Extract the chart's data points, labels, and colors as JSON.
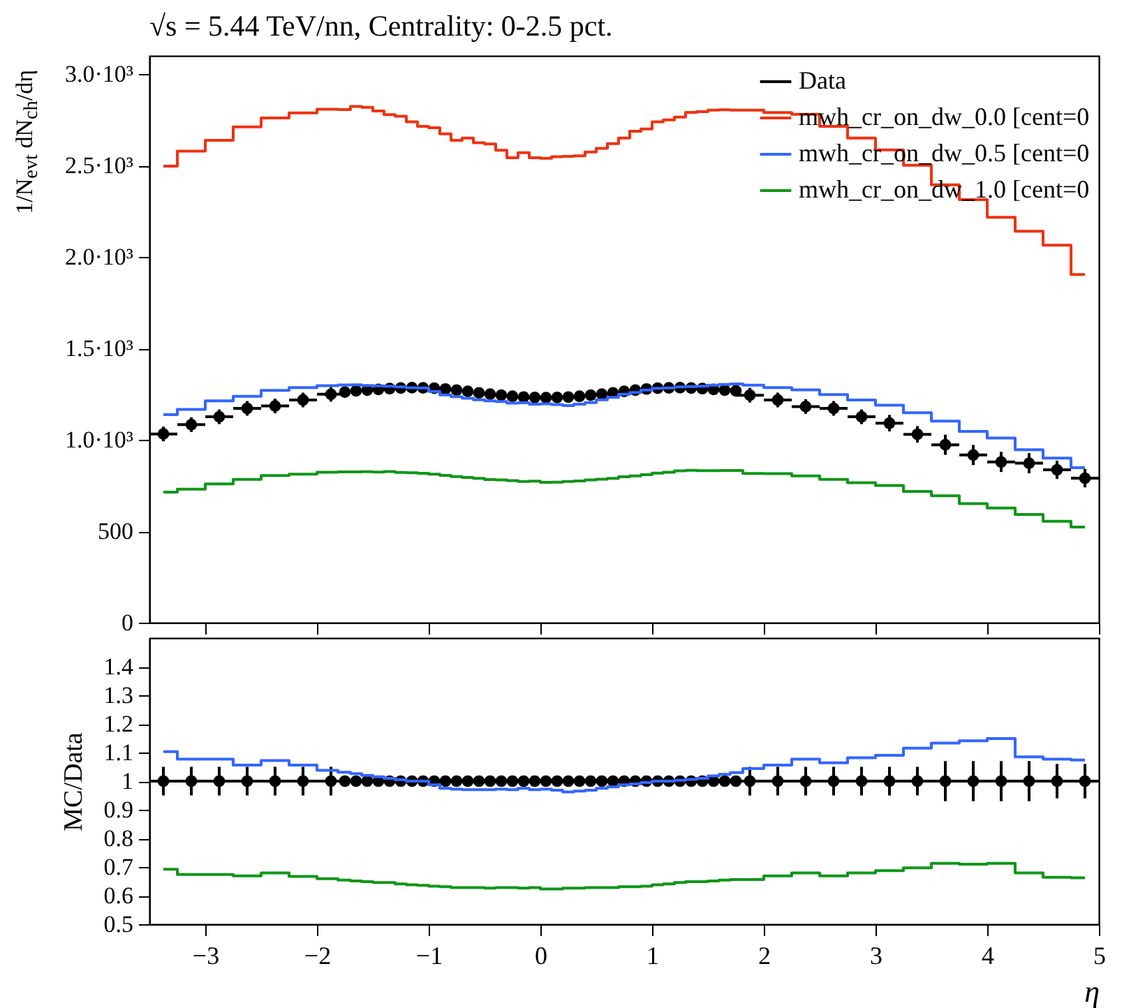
{
  "chart_data": [
    {
      "type": "step",
      "title": "√s = 5.44 TeV/nn, Centrality: 0-2.5 pct.",
      "ylabel": "1/N$_{evt}$ dN$_{ch}$/dη",
      "x": [
        -3.375,
        -3.125,
        -2.875,
        -2.625,
        -2.375,
        -2.125,
        -1.875,
        -1.75,
        -1.65,
        -1.55,
        -1.45,
        -1.35,
        -1.25,
        -1.15,
        -1.05,
        -0.95,
        -0.85,
        -0.75,
        -0.65,
        -0.55,
        -0.45,
        -0.35,
        -0.25,
        -0.15,
        -0.05,
        0.05,
        0.15,
        0.25,
        0.35,
        0.45,
        0.55,
        0.65,
        0.75,
        0.85,
        0.95,
        1.05,
        1.15,
        1.25,
        1.35,
        1.45,
        1.55,
        1.65,
        1.75,
        1.875,
        2.125,
        2.375,
        2.625,
        2.875,
        3.125,
        3.375,
        3.625,
        3.875,
        4.125,
        4.375,
        4.625,
        4.875
      ],
      "xlim": [
        -3.5,
        5
      ],
      "xticks": [
        -3,
        -2,
        -1,
        0,
        1,
        2,
        3,
        4,
        5
      ],
      "ylim": [
        0,
        3100
      ],
      "yticks": [
        0,
        500,
        {
          "value": 1000,
          "label": "1.0·10³"
        },
        {
          "value": 1500,
          "label": "1.5·10³"
        },
        {
          "value": 2000,
          "label": "2.0·10³"
        },
        {
          "value": 2500,
          "label": "2.5·10³"
        },
        {
          "value": 3000,
          "label": "3.0·10³"
        }
      ],
      "tick_labels": "y",
      "legend": "top right",
      "series": [
        {
          "name": "Data",
          "type": "scatter",
          "marker": "circle",
          "color": "#000000",
          "values": [
            1032,
            1083,
            1126,
            1172,
            1185,
            1218,
            1249,
            1261,
            1268,
            1272,
            1276,
            1280,
            1283,
            1285,
            1284,
            1282,
            1278,
            1272,
            1265,
            1257,
            1250,
            1244,
            1238,
            1234,
            1232,
            1231,
            1232,
            1234,
            1238,
            1244,
            1250,
            1257,
            1265,
            1272,
            1278,
            1282,
            1284,
            1285,
            1283,
            1280,
            1276,
            1272,
            1268,
            1244,
            1218,
            1182,
            1172,
            1126,
            1091,
            1030,
            973,
            917,
            879,
            872,
            836,
            790
          ],
          "errors": [
            40,
            40,
            40,
            40,
            40,
            40,
            40,
            null,
            null,
            null,
            null,
            null,
            null,
            null,
            null,
            null,
            null,
            null,
            null,
            null,
            null,
            null,
            null,
            null,
            null,
            null,
            null,
            null,
            null,
            null,
            null,
            null,
            null,
            null,
            null,
            null,
            null,
            null,
            null,
            null,
            null,
            null,
            null,
            40,
            40,
            40,
            40,
            40,
            45,
            45,
            55,
            55,
            55,
            55,
            50,
            50
          ],
          "xerrors": [
            0.125,
            0.125,
            0.125,
            0.125,
            0.125,
            0.125,
            0.125,
            0.05,
            0.05,
            0.05,
            0.05,
            0.05,
            0.05,
            0.05,
            0.05,
            0.05,
            0.05,
            0.05,
            0.05,
            0.05,
            0.05,
            0.05,
            0.05,
            0.05,
            0.05,
            0.05,
            0.05,
            0.05,
            0.05,
            0.05,
            0.05,
            0.05,
            0.05,
            0.05,
            0.05,
            0.05,
            0.05,
            0.05,
            0.05,
            0.05,
            0.05,
            0.05,
            0.05,
            0.125,
            0.125,
            0.125,
            0.125,
            0.125,
            0.125,
            0.125,
            0.125,
            0.125,
            0.125,
            0.125,
            0.125,
            0.125
          ]
        },
        {
          "name": "mwh_cr_on_dw_0.0 [cent=0",
          "color": "#ee3311",
          "values": [
            2497,
            2579,
            2638,
            2712,
            2760,
            2788,
            2808,
            2806,
            2823,
            2818,
            2798,
            2778,
            2770,
            2739,
            2714,
            2707,
            2673,
            2638,
            2650,
            2625,
            2618,
            2584,
            2543,
            2570,
            2543,
            2540,
            2548,
            2550,
            2553,
            2574,
            2594,
            2620,
            2650,
            2688,
            2700,
            2739,
            2750,
            2765,
            2791,
            2795,
            2803,
            2805,
            2803,
            2803,
            2790,
            2780,
            2714,
            2650,
            2586,
            2502,
            2395,
            2314,
            2217,
            2141,
            2064,
            1904
          ]
        },
        {
          "name": "mwh_cr_on_dw_0.5 [cent=0",
          "color": "#3366ff",
          "values": [
            1138,
            1166,
            1213,
            1238,
            1270,
            1286,
            1296,
            1300,
            1301,
            1297,
            1295,
            1293,
            1289,
            1285,
            1284,
            1265,
            1246,
            1236,
            1227,
            1219,
            1213,
            1209,
            1201,
            1203,
            1195,
            1197,
            1193,
            1187,
            1195,
            1204,
            1219,
            1232,
            1249,
            1259,
            1272,
            1282,
            1284,
            1289,
            1291,
            1293,
            1299,
            1303,
            1306,
            1299,
            1286,
            1273,
            1247,
            1218,
            1189,
            1148,
            1102,
            1046,
            1010,
            946,
            900,
            848
          ]
        },
        {
          "name": "mwh_cr_on_dw_1.0 [cent=0",
          "color": "#109618",
          "values": [
            714,
            730,
            759,
            784,
            805,
            812,
            823,
            825,
            825,
            826,
            824,
            827,
            822,
            820,
            817,
            812,
            806,
            799,
            794,
            789,
            783,
            781,
            777,
            772,
            774,
            767,
            768,
            772,
            775,
            781,
            785,
            789,
            798,
            803,
            809,
            818,
            823,
            830,
            833,
            831,
            831,
            832,
            832,
            816,
            815,
            803,
            784,
            765,
            750,
            718,
            694,
            651,
            627,
            592,
            555,
            523
          ]
        }
      ]
    },
    {
      "type": "step",
      "xlabel": "η",
      "ylabel": "MC/Data",
      "x": [
        -3.375,
        -3.125,
        -2.875,
        -2.625,
        -2.375,
        -2.125,
        -1.875,
        -1.75,
        -1.65,
        -1.55,
        -1.45,
        -1.35,
        -1.25,
        -1.15,
        -1.05,
        -0.95,
        -0.85,
        -0.75,
        -0.65,
        -0.55,
        -0.45,
        -0.35,
        -0.25,
        -0.15,
        -0.05,
        0.05,
        0.15,
        0.25,
        0.35,
        0.45,
        0.55,
        0.65,
        0.75,
        0.85,
        0.95,
        1.05,
        1.15,
        1.25,
        1.35,
        1.45,
        1.55,
        1.65,
        1.75,
        1.875,
        2.125,
        2.375,
        2.625,
        2.875,
        3.125,
        3.375,
        3.625,
        3.875,
        4.125,
        4.375,
        4.625,
        4.875
      ],
      "xlim": [
        -3.5,
        5
      ],
      "xticks": [
        -3,
        -2,
        -1,
        0,
        1,
        2,
        3,
        4,
        5
      ],
      "ylim": [
        0.5,
        1.5
      ],
      "yticks": [
        0.5,
        0.6,
        0.7,
        0.8,
        0.9,
        {
          "value": 1,
          "label": "1"
        },
        1.1,
        1.2,
        1.3,
        1.4
      ],
      "series": [
        {
          "type": "scatter",
          "marker": "circle",
          "color": "#000000",
          "values": [
            1,
            1,
            1,
            1,
            1,
            1,
            1,
            1,
            1,
            1,
            1,
            1,
            1,
            1,
            1,
            1,
            1,
            1,
            1,
            1,
            1,
            1,
            1,
            1,
            1,
            1,
            1,
            1,
            1,
            1,
            1,
            1,
            1,
            1,
            1,
            1,
            1,
            1,
            1,
            1,
            1,
            1,
            1,
            1,
            1,
            1,
            1,
            1,
            1,
            1,
            1,
            1,
            1,
            1,
            1,
            1
          ],
          "errors": [
            0.05,
            0.05,
            0.05,
            0.05,
            0.05,
            0.05,
            0.05,
            null,
            null,
            null,
            null,
            null,
            null,
            null,
            null,
            null,
            null,
            null,
            null,
            null,
            null,
            null,
            null,
            null,
            null,
            null,
            null,
            null,
            null,
            null,
            null,
            null,
            null,
            null,
            null,
            null,
            null,
            null,
            null,
            null,
            null,
            null,
            null,
            0.05,
            0.05,
            0.05,
            0.05,
            0.05,
            0.05,
            0.05,
            0.07,
            0.07,
            0.07,
            0.07,
            0.06,
            0.06
          ],
          "xerrors": [
            0.125,
            0.125,
            0.125,
            0.125,
            0.125,
            0.125,
            0.125,
            0.05,
            0.05,
            0.05,
            0.05,
            0.05,
            0.05,
            0.05,
            0.05,
            0.05,
            0.05,
            0.05,
            0.05,
            0.05,
            0.05,
            0.05,
            0.05,
            0.05,
            0.05,
            0.05,
            0.05,
            0.05,
            0.05,
            0.05,
            0.05,
            0.05,
            0.05,
            0.05,
            0.05,
            0.05,
            0.05,
            0.05,
            0.05,
            0.05,
            0.05,
            0.05,
            0.05,
            0.125,
            0.125,
            0.125,
            0.125,
            0.125,
            0.125,
            0.125,
            0.125,
            0.125,
            0.125,
            0.125,
            0.125,
            0.125
          ]
        },
        {
          "color": "#3366ff",
          "values": [
            1.103,
            1.077,
            1.077,
            1.056,
            1.072,
            1.056,
            1.038,
            1.031,
            1.026,
            1.02,
            1.015,
            1.01,
            1.005,
            1.0,
            1.0,
            0.987,
            0.975,
            0.972,
            0.97,
            0.97,
            0.97,
            0.972,
            0.97,
            0.975,
            0.97,
            0.972,
            0.968,
            0.962,
            0.965,
            0.968,
            0.975,
            0.98,
            0.987,
            0.99,
            0.995,
            1.0,
            1.0,
            1.003,
            1.006,
            1.01,
            1.018,
            1.024,
            1.03,
            1.044,
            1.056,
            1.077,
            1.064,
            1.082,
            1.09,
            1.115,
            1.133,
            1.141,
            1.149,
            1.085,
            1.077,
            1.074
          ]
        },
        {
          "color": "#109618",
          "values": [
            0.692,
            0.674,
            0.674,
            0.669,
            0.679,
            0.667,
            0.659,
            0.654,
            0.651,
            0.649,
            0.646,
            0.646,
            0.641,
            0.638,
            0.636,
            0.633,
            0.631,
            0.628,
            0.628,
            0.628,
            0.626,
            0.628,
            0.628,
            0.626,
            0.628,
            0.623,
            0.623,
            0.626,
            0.626,
            0.628,
            0.628,
            0.628,
            0.631,
            0.631,
            0.633,
            0.638,
            0.641,
            0.646,
            0.649,
            0.649,
            0.651,
            0.654,
            0.656,
            0.656,
            0.669,
            0.679,
            0.669,
            0.679,
            0.687,
            0.697,
            0.713,
            0.71,
            0.713,
            0.679,
            0.664,
            0.662
          ]
        }
      ]
    }
  ]
}
